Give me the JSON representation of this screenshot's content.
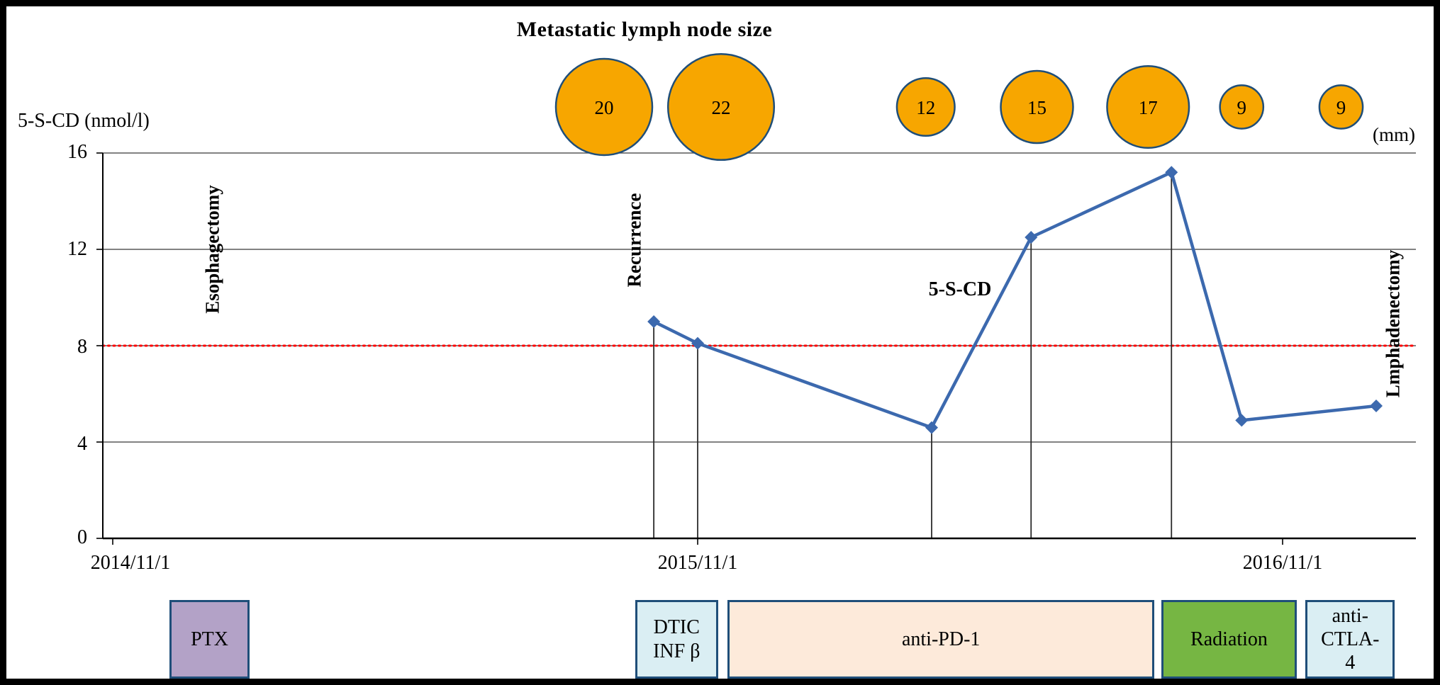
{
  "figure": {
    "title": "Metastatic lymph node size",
    "units_label": "(mm)",
    "y_axis_title": "5-S-CD (nmol/l)"
  },
  "annotations": {
    "esophagectomy": "Esophagectomy",
    "recurrence": "Recurrence",
    "lymphadenectomy": "Lmphadenectomy",
    "series_label": "5-S-CD"
  },
  "colors": {
    "series_line": "#3C69AE",
    "reference_line": "#FF0000",
    "gridline": "#595959",
    "axis": "#000000",
    "event_line": "#2B2B2B",
    "lymph_node_fill": "#F7A600",
    "lymph_node_border": "#1F4E79",
    "box_border": "#1F4E79"
  },
  "chart_data": {
    "type": "line",
    "title": "Metastatic lymph node size",
    "xlabel": "",
    "ylabel": "5-S-CD (nmol/l)",
    "ylim": [
      0,
      16
    ],
    "yticks": [
      0,
      4,
      8,
      12,
      16
    ],
    "x_tick_labels": [
      "2014/11/1",
      "2015/11/1",
      "2016/11/1"
    ],
    "x_unit": "years after 2014/11/1",
    "grid": "horizontal",
    "legend_position": "none",
    "reference_line_y": 8,
    "series": [
      {
        "name": "5-S-CD",
        "points": [
          {
            "t": 0.925,
            "value": 9.0
          },
          {
            "t": 1.0,
            "value": 8.1
          },
          {
            "t": 1.4,
            "value": 4.6
          },
          {
            "t": 1.57,
            "value": 12.5
          },
          {
            "t": 1.81,
            "value": 15.2
          },
          {
            "t": 1.93,
            "value": 4.9
          },
          {
            "t": 2.16,
            "value": 5.5
          }
        ]
      }
    ],
    "event_line_point_indices": [
      0,
      1,
      2,
      3,
      4
    ],
    "lymph_nodes": {
      "title": "Metastatic lymph node size",
      "unit": "mm",
      "items": [
        {
          "t": 0.84,
          "size_mm": 20
        },
        {
          "t": 1.04,
          "size_mm": 22
        },
        {
          "t": 1.39,
          "size_mm": 12
        },
        {
          "t": 1.58,
          "size_mm": 15
        },
        {
          "t": 1.77,
          "size_mm": 17
        },
        {
          "t": 1.93,
          "size_mm": 9
        },
        {
          "t": 2.1,
          "size_mm": 9
        }
      ]
    },
    "treatments": [
      {
        "label": "PTX",
        "t_start": 0.097,
        "t_end": 0.234,
        "fill": "#B3A2C7"
      },
      {
        "label": "DTIC\nINF β",
        "t_start": 0.893,
        "t_end": 1.035,
        "fill": "#DAEEF3"
      },
      {
        "label": "anti-PD-1",
        "t_start": 1.051,
        "t_end": 1.781,
        "fill": "#FDEADA"
      },
      {
        "label": "Radiation",
        "t_start": 1.793,
        "t_end": 2.024,
        "fill": "#76B643"
      },
      {
        "label": "anti-\nCTLA-\n4",
        "t_start": 2.039,
        "t_end": 2.192,
        "fill": "#DAEEF3"
      }
    ]
  }
}
